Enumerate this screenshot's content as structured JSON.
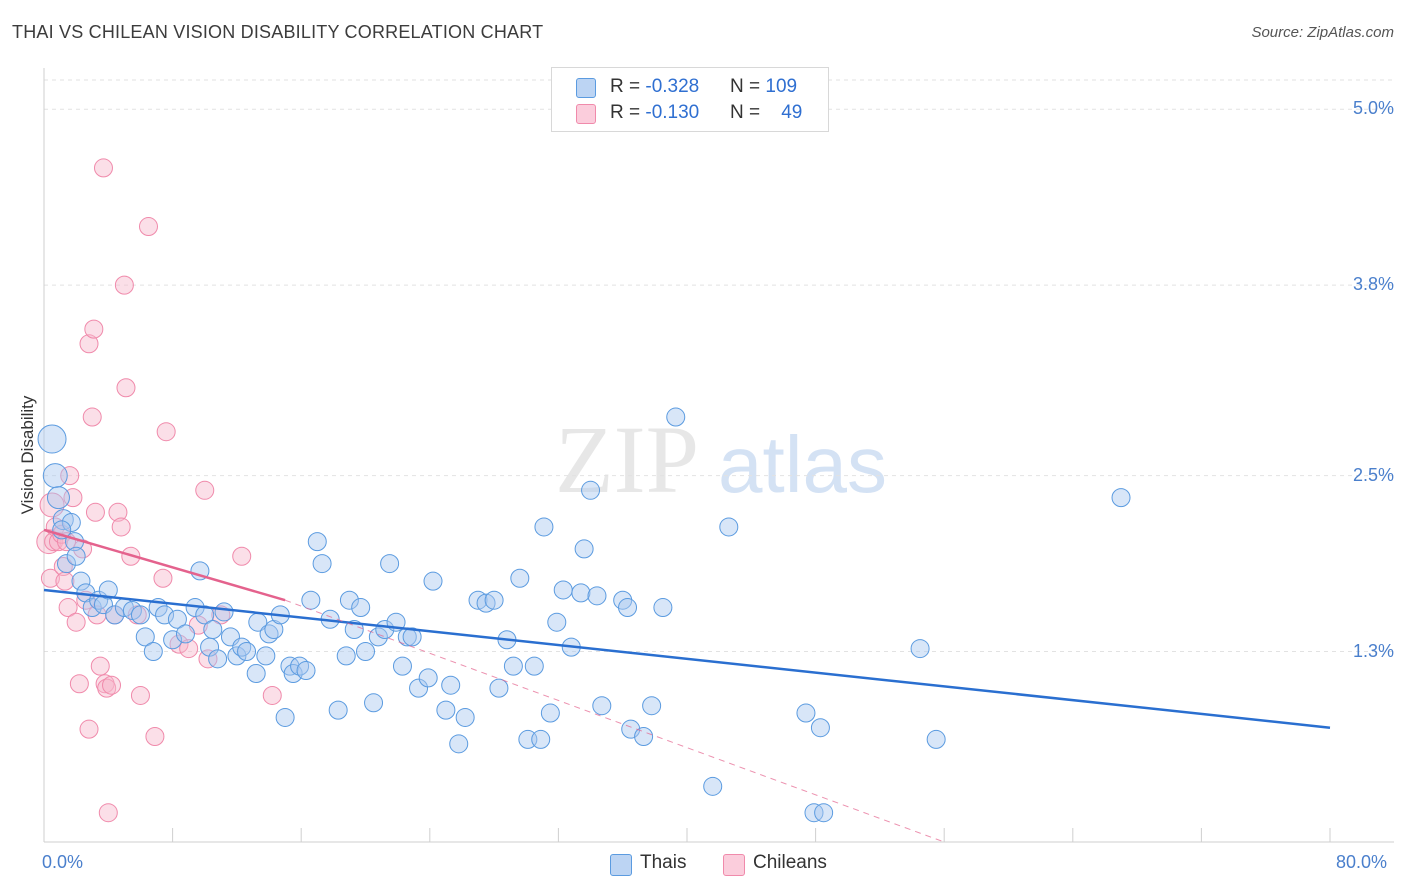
{
  "title": "THAI VS CHILEAN VISION DISABILITY CORRELATION CHART",
  "source": "Source: ZipAtlas.com",
  "watermark": {
    "zip": "ZIP",
    "atlas": "atlas"
  },
  "colors": {
    "thais": "#5b9be0",
    "chileans": "#f08aab",
    "thais_line": "#2a6fd0",
    "chileans_line": "#e4628d"
  },
  "legend": {
    "thais": {
      "r_label": "R = ",
      "r_value": "-0.328",
      "n_label": "N = ",
      "n_value": "109"
    },
    "chileans": {
      "r_label": "R = ",
      "r_value": "-0.130",
      "n_label": "N = ",
      "n_value": "49"
    }
  },
  "chart_data": {
    "type": "scatter",
    "title": "THAI VS CHILEAN VISION DISABILITY CORRELATION CHART",
    "xlabel": "",
    "ylabel": "Vision Disability",
    "xlim": [
      0,
      80
    ],
    "ylim": [
      0,
      5.2
    ],
    "x_tick_labels": {
      "min": "0.0%",
      "max": "80.0%"
    },
    "y_ticks": [
      {
        "value": 1.3,
        "label": "1.3%"
      },
      {
        "value": 2.5,
        "label": "2.5%"
      },
      {
        "value": 3.8,
        "label": "3.8%"
      },
      {
        "value": 5.0,
        "label": "5.0%"
      }
    ],
    "series": [
      {
        "name": "Thais",
        "points": [
          [
            0.5,
            2.75
          ],
          [
            0.7,
            2.5
          ],
          [
            0.9,
            2.35
          ],
          [
            1.2,
            2.2
          ],
          [
            1.4,
            1.9
          ],
          [
            1.7,
            2.18
          ],
          [
            1.9,
            2.05
          ],
          [
            2,
            1.95
          ],
          [
            2.3,
            1.78
          ],
          [
            2.6,
            1.7
          ],
          [
            3,
            1.6
          ],
          [
            3.4,
            1.65
          ],
          [
            3.7,
            1.62
          ],
          [
            4,
            1.72
          ],
          [
            4.4,
            1.55
          ],
          [
            5,
            1.6
          ],
          [
            5.5,
            1.58
          ],
          [
            6,
            1.55
          ],
          [
            6.3,
            1.4
          ],
          [
            6.8,
            1.3
          ],
          [
            7.1,
            1.6
          ],
          [
            7.5,
            1.55
          ],
          [
            8,
            1.38
          ],
          [
            8.3,
            1.52
          ],
          [
            8.8,
            1.42
          ],
          [
            9.4,
            1.6
          ],
          [
            9.7,
            1.85
          ],
          [
            10,
            1.55
          ],
          [
            10.3,
            1.33
          ],
          [
            10.5,
            1.45
          ],
          [
            10.8,
            1.25
          ],
          [
            11.2,
            1.57
          ],
          [
            11.6,
            1.4
          ],
          [
            12,
            1.27
          ],
          [
            12.3,
            1.33
          ],
          [
            12.6,
            1.3
          ],
          [
            13.2,
            1.15
          ],
          [
            13.3,
            1.5
          ],
          [
            13.8,
            1.27
          ],
          [
            14,
            1.42
          ],
          [
            14.3,
            1.45
          ],
          [
            14.7,
            1.55
          ],
          [
            15,
            0.85
          ],
          [
            15.3,
            1.2
          ],
          [
            15.5,
            1.15
          ],
          [
            15.9,
            1.2
          ],
          [
            16.3,
            1.17
          ],
          [
            16.6,
            1.65
          ],
          [
            17,
            2.05
          ],
          [
            17.3,
            1.9
          ],
          [
            17.8,
            1.52
          ],
          [
            18.3,
            0.9
          ],
          [
            18.8,
            1.27
          ],
          [
            19,
            1.65
          ],
          [
            19.3,
            1.45
          ],
          [
            19.7,
            1.6
          ],
          [
            20,
            1.3
          ],
          [
            20.5,
            0.95
          ],
          [
            20.8,
            1.4
          ],
          [
            21.2,
            1.45
          ],
          [
            21.5,
            1.9
          ],
          [
            21.9,
            1.5
          ],
          [
            22.3,
            1.2
          ],
          [
            22.6,
            1.4
          ],
          [
            22.9,
            1.4
          ],
          [
            23.3,
            1.05
          ],
          [
            23.9,
            1.12
          ],
          [
            24.2,
            1.78
          ],
          [
            25,
            0.9
          ],
          [
            25.3,
            1.07
          ],
          [
            25.8,
            0.67
          ],
          [
            26.2,
            0.85
          ],
          [
            27,
            1.65
          ],
          [
            27.5,
            1.63
          ],
          [
            28,
            1.65
          ],
          [
            28.3,
            1.05
          ],
          [
            28.8,
            1.38
          ],
          [
            29.2,
            1.2
          ],
          [
            29.6,
            1.8
          ],
          [
            30.1,
            0.7
          ],
          [
            30.5,
            1.2
          ],
          [
            30.9,
            0.7
          ],
          [
            31.1,
            2.15
          ],
          [
            31.5,
            0.88
          ],
          [
            31.9,
            1.5
          ],
          [
            32.3,
            1.72
          ],
          [
            32.8,
            1.33
          ],
          [
            33.4,
            1.7
          ],
          [
            33.6,
            2.0
          ],
          [
            34,
            2.4
          ],
          [
            34.4,
            1.68
          ],
          [
            34.7,
            0.93
          ],
          [
            36,
            1.65
          ],
          [
            36.3,
            1.6
          ],
          [
            36.5,
            0.77
          ],
          [
            37.3,
            0.72
          ],
          [
            37.8,
            0.93
          ],
          [
            38.5,
            1.6
          ],
          [
            39.3,
            2.9
          ],
          [
            41.6,
            0.38
          ],
          [
            42.6,
            2.15
          ],
          [
            47.4,
            0.88
          ],
          [
            47.9,
            0.2
          ],
          [
            48.3,
            0.78
          ],
          [
            48.5,
            0.2
          ],
          [
            54.5,
            1.32
          ],
          [
            55.5,
            0.7
          ],
          [
            67,
            2.35
          ],
          [
            1.1,
            2.13
          ]
        ]
      },
      {
        "name": "Chileans",
        "points": [
          [
            0.3,
            2.05
          ],
          [
            0.4,
            1.8
          ],
          [
            0.5,
            2.3
          ],
          [
            0.6,
            2.05
          ],
          [
            0.7,
            2.15
          ],
          [
            0.9,
            2.05
          ],
          [
            1.1,
            2.1
          ],
          [
            1.2,
            1.88
          ],
          [
            1.3,
            1.78
          ],
          [
            1.4,
            2.05
          ],
          [
            1.5,
            1.6
          ],
          [
            1.6,
            2.5
          ],
          [
            1.8,
            2.35
          ],
          [
            2,
            1.5
          ],
          [
            2.2,
            1.08
          ],
          [
            2.4,
            2.0
          ],
          [
            2.6,
            1.65
          ],
          [
            2.8,
            3.4
          ],
          [
            3.0,
            2.9
          ],
          [
            3.1,
            3.5
          ],
          [
            3.2,
            2.25
          ],
          [
            3.3,
            1.55
          ],
          [
            3.5,
            1.2
          ],
          [
            3.7,
            4.6
          ],
          [
            3.8,
            1.08
          ],
          [
            3.9,
            1.05
          ],
          [
            4.0,
            0.2
          ],
          [
            4.2,
            1.07
          ],
          [
            4.4,
            1.55
          ],
          [
            4.6,
            2.25
          ],
          [
            4.8,
            2.15
          ],
          [
            5.0,
            3.8
          ],
          [
            5.1,
            3.1
          ],
          [
            5.4,
            1.95
          ],
          [
            5.8,
            1.55
          ],
          [
            6.0,
            1.0
          ],
          [
            6.5,
            4.2
          ],
          [
            6.9,
            0.72
          ],
          [
            7.4,
            1.8
          ],
          [
            7.6,
            2.8
          ],
          [
            8.4,
            1.35
          ],
          [
            9.0,
            1.32
          ],
          [
            9.6,
            1.48
          ],
          [
            10.0,
            2.4
          ],
          [
            10.2,
            1.25
          ],
          [
            11.0,
            1.55
          ],
          [
            12.3,
            1.95
          ],
          [
            14.2,
            1.0
          ],
          [
            2.8,
            0.77
          ]
        ]
      }
    ],
    "trend_lines": [
      {
        "series": "Thais",
        "x": [
          0,
          80
        ],
        "y": [
          1.72,
          0.78
        ],
        "style": "solid"
      },
      {
        "series": "Chileans",
        "x": [
          0,
          15
        ],
        "y": [
          2.13,
          1.65
        ],
        "style": "solid"
      },
      {
        "series": "Chileans",
        "x": [
          15,
          56
        ],
        "y": [
          1.65,
          0.0
        ],
        "style": "dashed"
      }
    ]
  }
}
